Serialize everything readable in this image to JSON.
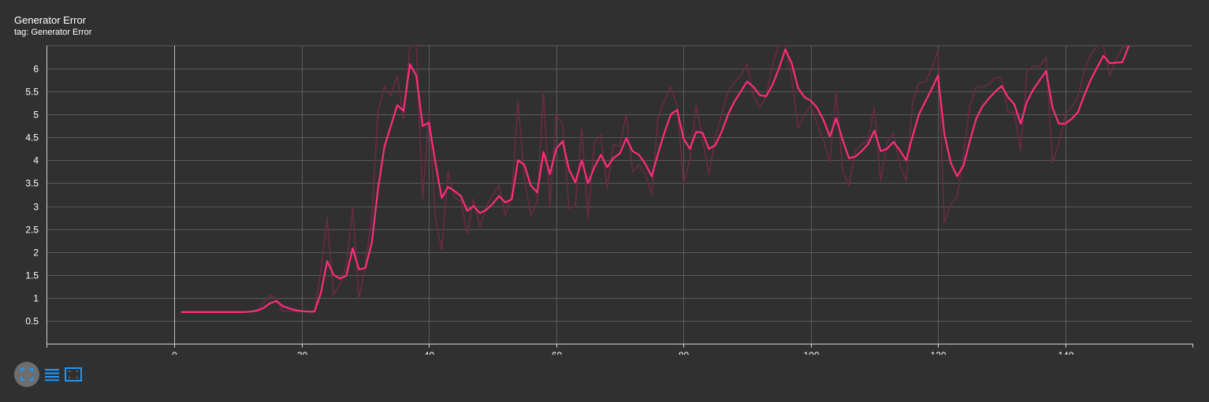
{
  "card": {
    "title": "Generator Error",
    "tag": "tag: Generator Error"
  },
  "toolbar": {
    "buttons": [
      {
        "icon": "fullscreen-icon",
        "active": true
      },
      {
        "icon": "data-table-icon",
        "active": false
      },
      {
        "icon": "fit-domain-icon",
        "active": false
      }
    ]
  },
  "colors": {
    "background": "#303030",
    "line": "#ff2d78",
    "raw_line": "#6b2a45",
    "grid": "#5a5a5a",
    "text": "#ffffff"
  },
  "chart_data": {
    "type": "line",
    "title": "Generator Error",
    "xlabel": "",
    "ylabel": "",
    "xlim": [
      -20,
      160
    ],
    "ylim": [
      0,
      6.5
    ],
    "x_ticks": [
      0,
      20,
      40,
      60,
      80,
      100,
      120,
      140
    ],
    "y_ticks": [
      0.5,
      1,
      1.5,
      2,
      2.5,
      3,
      3.5,
      4,
      4.5,
      5,
      5.5,
      6
    ],
    "grid": true,
    "legend": "none",
    "series": [
      {
        "role": "smoothed",
        "x": [
          1,
          2,
          3,
          4,
          5,
          6,
          7,
          8,
          9,
          10,
          11,
          12,
          13,
          14,
          15,
          16,
          17,
          18,
          19,
          20,
          21,
          22,
          23,
          24,
          25,
          26,
          27,
          28,
          29,
          30,
          31,
          32,
          33,
          34,
          35,
          36,
          37,
          38,
          39,
          40,
          41,
          42,
          43,
          44,
          45,
          46,
          47,
          48,
          49,
          50,
          51,
          52,
          53,
          54,
          55,
          56,
          57,
          58,
          59,
          60,
          61,
          62,
          63,
          64,
          65,
          66,
          67,
          68,
          69,
          70,
          71,
          72,
          73,
          74,
          75,
          76,
          77,
          78,
          79,
          80,
          81,
          82,
          83,
          84,
          85,
          86,
          87,
          88,
          89,
          90,
          91,
          92,
          93,
          94,
          95,
          96,
          97,
          98,
          99,
          100,
          101,
          102,
          103,
          104,
          105,
          106,
          107,
          108,
          109,
          110,
          111,
          112,
          113,
          114,
          115,
          116,
          117,
          118,
          119,
          120,
          121,
          122,
          123,
          124,
          125,
          126,
          127,
          128,
          129,
          130,
          131,
          132,
          133,
          134,
          135,
          136,
          137,
          138,
          139,
          140,
          141,
          142,
          143,
          144,
          145,
          146,
          147,
          148,
          149,
          150
        ],
        "y": [
          0.69,
          0.69,
          0.69,
          0.69,
          0.69,
          0.69,
          0.69,
          0.69,
          0.69,
          0.69,
          0.69,
          0.7,
          0.72,
          0.78,
          0.88,
          0.93,
          0.82,
          0.77,
          0.73,
          0.71,
          0.7,
          0.7,
          1.1,
          1.8,
          1.5,
          1.42,
          1.48,
          2.08,
          1.62,
          1.65,
          2.2,
          3.4,
          4.3,
          4.75,
          5.2,
          5.08,
          6.1,
          5.85,
          4.75,
          4.82,
          3.95,
          3.18,
          3.42,
          3.33,
          3.22,
          2.9,
          3.0,
          2.85,
          2.92,
          3.05,
          3.22,
          3.08,
          3.15,
          4.0,
          3.9,
          3.45,
          3.3,
          4.18,
          3.7,
          4.25,
          4.42,
          3.8,
          3.52,
          4.0,
          3.5,
          3.85,
          4.12,
          3.85,
          4.05,
          4.15,
          4.48,
          4.2,
          4.12,
          3.92,
          3.65,
          4.15,
          4.6,
          5.0,
          5.1,
          4.48,
          4.25,
          4.62,
          4.6,
          4.25,
          4.33,
          4.62,
          5.0,
          5.28,
          5.5,
          5.72,
          5.6,
          5.42,
          5.4,
          5.65,
          6.0,
          6.42,
          6.12,
          5.58,
          5.38,
          5.3,
          5.15,
          4.88,
          4.52,
          4.92,
          4.45,
          4.05,
          4.08,
          4.2,
          4.35,
          4.65,
          4.2,
          4.25,
          4.4,
          4.22,
          4.0,
          4.52,
          5.0,
          5.28,
          5.55,
          5.85,
          4.58,
          3.95,
          3.65,
          3.88,
          4.42,
          4.9,
          5.18,
          5.35,
          5.5,
          5.62,
          5.38,
          5.22,
          4.8,
          5.28,
          5.55,
          5.75,
          5.95,
          5.15,
          4.8,
          4.8,
          4.9,
          5.05,
          5.42,
          5.75,
          6.02,
          6.28,
          6.12,
          6.13,
          6.14,
          6.5
        ]
      },
      {
        "role": "raw",
        "x": [
          1,
          2,
          3,
          4,
          5,
          6,
          7,
          8,
          9,
          10,
          11,
          12,
          13,
          14,
          15,
          16,
          17,
          18,
          19,
          20,
          21,
          22,
          23,
          24,
          25,
          26,
          27,
          28,
          29,
          30,
          31,
          32,
          33,
          34,
          35,
          36,
          37,
          38,
          39,
          40,
          41,
          42,
          43,
          44,
          45,
          46,
          47,
          48,
          49,
          50,
          51,
          52,
          53,
          54,
          55,
          56,
          57,
          58,
          59,
          60,
          61,
          62,
          63,
          64,
          65,
          66,
          67,
          68,
          69,
          70,
          71,
          72,
          73,
          74,
          75,
          76,
          77,
          78,
          79,
          80,
          81,
          82,
          83,
          84,
          85,
          86,
          87,
          88,
          89,
          90,
          91,
          92,
          93,
          94,
          95,
          96,
          97,
          98,
          99,
          100,
          101,
          102,
          103,
          104,
          105,
          106,
          107,
          108,
          109,
          110,
          111,
          112,
          113,
          114,
          115,
          116,
          117,
          118,
          119,
          120,
          121,
          122,
          123,
          124,
          125,
          126,
          127,
          128,
          129,
          130,
          131,
          132,
          133,
          134,
          135,
          136,
          137,
          138,
          139,
          140,
          141,
          142,
          143,
          144,
          145,
          146,
          147,
          148,
          149,
          150
        ],
        "y": [
          0.69,
          0.69,
          0.69,
          0.69,
          0.69,
          0.69,
          0.69,
          0.69,
          0.69,
          0.69,
          0.69,
          0.7,
          0.74,
          0.88,
          1.05,
          1.0,
          0.7,
          0.72,
          0.7,
          0.7,
          0.7,
          0.7,
          1.6,
          2.75,
          1.05,
          1.3,
          1.7,
          2.95,
          0.98,
          1.7,
          2.8,
          5.1,
          5.6,
          5.4,
          5.85,
          4.9,
          6.5,
          6.5,
          3.15,
          5.0,
          2.75,
          2.05,
          3.75,
          3.2,
          3.1,
          2.4,
          3.15,
          2.55,
          3.0,
          3.25,
          3.45,
          2.8,
          3.25,
          5.3,
          3.6,
          2.8,
          3.1,
          5.5,
          3.0,
          5.0,
          4.8,
          2.95,
          3.0,
          4.7,
          2.75,
          4.4,
          4.55,
          3.4,
          4.35,
          4.3,
          5.0,
          3.75,
          3.9,
          3.7,
          3.25,
          4.95,
          5.3,
          5.6,
          5.2,
          3.5,
          4.0,
          5.2,
          4.45,
          3.7,
          4.5,
          5.0,
          5.5,
          5.7,
          5.85,
          6.1,
          5.4,
          5.15,
          5.4,
          6.1,
          6.5,
          6.5,
          5.8,
          4.7,
          5.0,
          5.2,
          4.8,
          4.45,
          3.95,
          5.5,
          3.8,
          3.45,
          4.2,
          4.35,
          4.45,
          5.15,
          3.55,
          4.4,
          4.6,
          3.9,
          3.55,
          5.25,
          5.7,
          5.7,
          6.0,
          6.4,
          2.65,
          3.05,
          3.2,
          4.1,
          5.2,
          5.6,
          5.6,
          5.65,
          5.8,
          5.8,
          5.05,
          5.05,
          4.2,
          5.95,
          6.05,
          6.05,
          6.25,
          3.95,
          4.35,
          5.0,
          5.15,
          5.4,
          5.95,
          6.3,
          6.5,
          6.5,
          5.85,
          6.2,
          6.45,
          6.5
        ]
      }
    ]
  }
}
